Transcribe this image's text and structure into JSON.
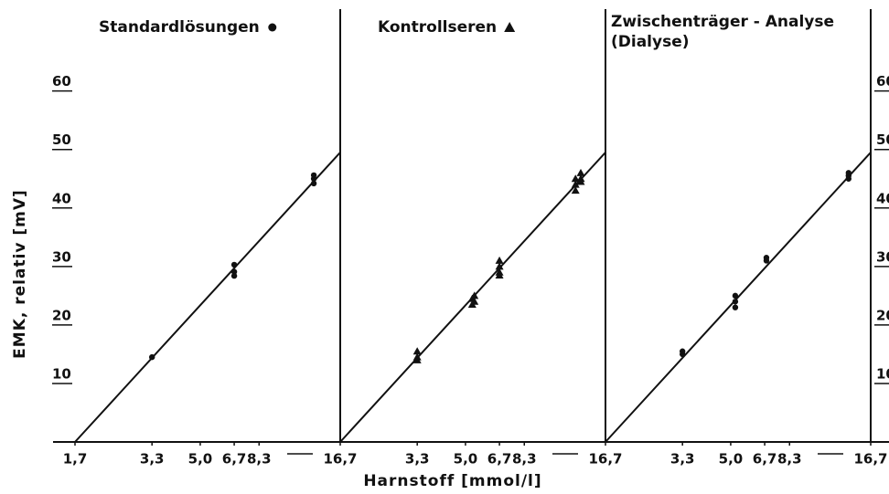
{
  "chart_data": [
    {
      "type": "scatter",
      "title": "Standardlösungen",
      "marker": "circle",
      "log_x": true,
      "y_label": "EMK, relativ  [mV]",
      "x": [
        3.3,
        6.7,
        6.7,
        6.7,
        13.3,
        13.3,
        13.3
      ],
      "values": [
        14.5,
        30.3,
        29.1,
        28.4,
        44.2,
        45,
        45.6
      ],
      "fit": {
        "x": [
          1.7,
          16.7
        ],
        "y": [
          0,
          49.5
        ]
      },
      "xlim": [
        1.7,
        16.7
      ],
      "xticks": [
        {
          "value": 1.7,
          "label": "1,7"
        },
        {
          "value": 3.3,
          "label": "3,3"
        },
        {
          "value": 5.0,
          "label": "5,0"
        },
        {
          "value": 6.7,
          "label": "6,7"
        },
        {
          "value": 8.3,
          "label": "8,3"
        },
        {
          "value": 16.7,
          "label": "16,7"
        }
      ],
      "ylim": [
        0,
        74
      ],
      "yticks": [
        10,
        20,
        30,
        40,
        50,
        60
      ],
      "y_side": "left"
    },
    {
      "type": "scatter",
      "title": "Kontrollseren",
      "marker": "triangle",
      "log_x": true,
      "x_label": "Harnstoff  [mmol/l]",
      "x": [
        3.3,
        3.3,
        3.3,
        5.3,
        5.3,
        5.4,
        5.4,
        6.7,
        6.7,
        6.7,
        6.7,
        12.9,
        12.9,
        12.9,
        13.5,
        13.5,
        13.5
      ],
      "values": [
        14,
        14.5,
        15.5,
        24.5,
        23.5,
        25,
        24,
        31,
        30,
        29,
        28.5,
        44,
        43,
        45,
        45,
        46,
        44.5
      ],
      "fit": {
        "x": [
          1.7,
          16.7
        ],
        "y": [
          0,
          49.5
        ]
      },
      "xlim": [
        1.7,
        16.7
      ],
      "xticks": [
        {
          "value": 3.3,
          "label": "3,3"
        },
        {
          "value": 5.0,
          "label": "5,0"
        },
        {
          "value": 6.7,
          "label": "6,7"
        },
        {
          "value": 8.3,
          "label": "8,3"
        },
        {
          "value": 16.7,
          "label": "16,7"
        }
      ],
      "ylim": [
        0,
        74
      ]
    },
    {
      "type": "scatter",
      "title": "Zwischenträger - Analyse",
      "subtitle": "(Dialyse)",
      "marker": "circle",
      "log_x": true,
      "x": [
        3.3,
        3.3,
        5.2,
        5.2,
        5.2,
        6.8,
        6.8,
        13.8,
        13.8,
        13.8
      ],
      "values": [
        15,
        15.5,
        25,
        23,
        24,
        31,
        31.5,
        45,
        45.5,
        46
      ],
      "fit": {
        "x": [
          1.7,
          16.7
        ],
        "y": [
          0,
          49.5
        ]
      },
      "xlim": [
        1.7,
        16.7
      ],
      "xticks": [
        {
          "value": 3.3,
          "label": "3,3"
        },
        {
          "value": 5.0,
          "label": "5,0"
        },
        {
          "value": 6.7,
          "label": "6,7"
        },
        {
          "value": 8.3,
          "label": "8,3"
        },
        {
          "value": 16.7,
          "label": "16,7"
        }
      ],
      "ylim": [
        0,
        74
      ],
      "yticks": [
        10,
        20,
        30,
        40,
        50,
        60
      ],
      "y_side": "right"
    }
  ]
}
